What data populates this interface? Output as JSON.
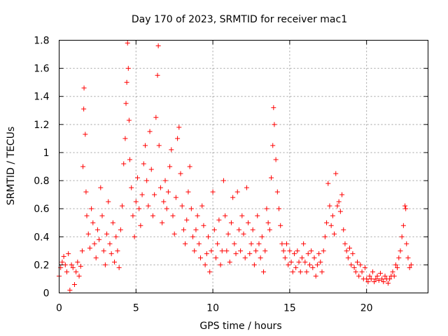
{
  "chart_data": {
    "type": "scatter",
    "title": "Day 170 of 2023, SRMTID for receiver mac1",
    "xlabel": "GPS time / hours",
    "ylabel": "SRMTID / TECUs",
    "xlim": [
      0,
      24
    ],
    "ylim": [
      0,
      1.8
    ],
    "xticks": [
      0,
      5,
      10,
      15,
      20
    ],
    "xtick_labels": [
      "0",
      "5",
      "10",
      "15",
      "20"
    ],
    "yticks": [
      0,
      0.2,
      0.4,
      0.6,
      0.8,
      1,
      1.2,
      1.4,
      1.6,
      1.8
    ],
    "ytick_labels": [
      "0",
      "0.2",
      "0.4",
      "0.6",
      "0.8",
      "1",
      "1.2",
      "1.4",
      "1.6",
      "1.8"
    ],
    "grid": true,
    "marker": "+",
    "color": "#ff0000",
    "series": [
      {
        "name": "SRMTID",
        "points": [
          [
            0.0,
            0.12
          ],
          [
            0.1,
            0.18
          ],
          [
            0.2,
            0.22
          ],
          [
            0.3,
            0.26
          ],
          [
            0.4,
            0.2
          ],
          [
            0.5,
            0.15
          ],
          [
            0.6,
            0.28
          ],
          [
            0.7,
            0.02
          ],
          [
            0.8,
            0.2
          ],
          [
            0.9,
            0.18
          ],
          [
            1.0,
            0.06
          ],
          [
            1.1,
            0.15
          ],
          [
            1.2,
            0.22
          ],
          [
            1.3,
            0.12
          ],
          [
            1.4,
            0.19
          ],
          [
            1.5,
            0.3
          ],
          [
            1.55,
            0.9
          ],
          [
            1.6,
            1.31
          ],
          [
            1.62,
            1.46
          ],
          [
            1.7,
            1.13
          ],
          [
            1.75,
            0.72
          ],
          [
            1.8,
            0.55
          ],
          [
            1.9,
            0.42
          ],
          [
            2.0,
            0.32
          ],
          [
            2.1,
            0.6
          ],
          [
            2.2,
            0.5
          ],
          [
            2.3,
            0.35
          ],
          [
            2.4,
            0.25
          ],
          [
            2.5,
            0.45
          ],
          [
            2.6,
            0.38
          ],
          [
            2.7,
            0.75
          ],
          [
            2.8,
            0.55
          ],
          [
            2.9,
            0.3
          ],
          [
            3.0,
            0.2
          ],
          [
            3.1,
            0.42
          ],
          [
            3.2,
            0.65
          ],
          [
            3.3,
            0.35
          ],
          [
            3.4,
            0.28
          ],
          [
            3.5,
            0.5
          ],
          [
            3.6,
            0.22
          ],
          [
            3.7,
            0.4
          ],
          [
            3.8,
            0.3
          ],
          [
            3.9,
            0.18
          ],
          [
            4.0,
            0.45
          ],
          [
            4.1,
            0.62
          ],
          [
            4.2,
            0.92
          ],
          [
            4.3,
            1.1
          ],
          [
            4.35,
            1.35
          ],
          [
            4.4,
            1.5
          ],
          [
            4.45,
            1.78
          ],
          [
            4.5,
            1.6
          ],
          [
            4.55,
            1.23
          ],
          [
            4.6,
            0.95
          ],
          [
            4.7,
            0.75
          ],
          [
            4.8,
            0.55
          ],
          [
            4.9,
            0.4
          ],
          [
            5.0,
            0.65
          ],
          [
            5.1,
            0.82
          ],
          [
            5.2,
            0.6
          ],
          [
            5.3,
            0.48
          ],
          [
            5.4,
            0.7
          ],
          [
            5.5,
            0.92
          ],
          [
            5.6,
            1.05
          ],
          [
            5.7,
            0.8
          ],
          [
            5.8,
            0.62
          ],
          [
            5.9,
            1.15
          ],
          [
            6.0,
            0.88
          ],
          [
            6.1,
            0.55
          ],
          [
            6.2,
            0.7
          ],
          [
            6.3,
            1.25
          ],
          [
            6.4,
            1.55
          ],
          [
            6.45,
            1.76
          ],
          [
            6.5,
            1.05
          ],
          [
            6.6,
            0.75
          ],
          [
            6.7,
            0.5
          ],
          [
            6.8,
            0.65
          ],
          [
            6.9,
            0.8
          ],
          [
            7.0,
            0.6
          ],
          [
            7.1,
            0.72
          ],
          [
            7.2,
            0.9
          ],
          [
            7.3,
            1.02
          ],
          [
            7.4,
            0.55
          ],
          [
            7.5,
            0.42
          ],
          [
            7.6,
            0.68
          ],
          [
            7.7,
            1.1
          ],
          [
            7.8,
            1.18
          ],
          [
            7.9,
            0.85
          ],
          [
            8.0,
            0.62
          ],
          [
            8.1,
            0.45
          ],
          [
            8.2,
            0.35
          ],
          [
            8.3,
            0.52
          ],
          [
            8.4,
            0.72
          ],
          [
            8.5,
            0.9
          ],
          [
            8.6,
            0.6
          ],
          [
            8.7,
            0.4
          ],
          [
            8.8,
            0.3
          ],
          [
            8.9,
            0.45
          ],
          [
            9.0,
            0.55
          ],
          [
            9.1,
            0.35
          ],
          [
            9.2,
            0.25
          ],
          [
            9.3,
            0.62
          ],
          [
            9.4,
            0.48
          ],
          [
            9.5,
            0.2
          ],
          [
            9.6,
            0.28
          ],
          [
            9.7,
            0.4
          ],
          [
            9.8,
            0.15
          ],
          [
            9.9,
            0.3
          ],
          [
            10.0,
            0.72
          ],
          [
            10.1,
            0.45
          ],
          [
            10.2,
            0.25
          ],
          [
            10.3,
            0.35
          ],
          [
            10.4,
            0.52
          ],
          [
            10.5,
            0.2
          ],
          [
            10.6,
            0.3
          ],
          [
            10.7,
            0.8
          ],
          [
            10.8,
            0.55
          ],
          [
            10.9,
            0.3
          ],
          [
            11.0,
            0.42
          ],
          [
            11.1,
            0.22
          ],
          [
            11.2,
            0.5
          ],
          [
            11.3,
            0.68
          ],
          [
            11.4,
            0.35
          ],
          [
            11.5,
            0.28
          ],
          [
            11.6,
            0.72
          ],
          [
            11.7,
            0.45
          ],
          [
            11.8,
            0.3
          ],
          [
            11.9,
            0.55
          ],
          [
            12.0,
            0.42
          ],
          [
            12.1,
            0.25
          ],
          [
            12.2,
            0.75
          ],
          [
            12.3,
            0.5
          ],
          [
            12.4,
            0.28
          ],
          [
            12.5,
            0.35
          ],
          [
            12.6,
            0.45
          ],
          [
            12.7,
            0.2
          ],
          [
            12.8,
            0.3
          ],
          [
            12.9,
            0.55
          ],
          [
            13.0,
            0.35
          ],
          [
            13.1,
            0.25
          ],
          [
            13.2,
            0.4
          ],
          [
            13.3,
            0.15
          ],
          [
            13.4,
            0.3
          ],
          [
            13.5,
            0.6
          ],
          [
            13.6,
            0.5
          ],
          [
            13.7,
            0.45
          ],
          [
            13.8,
            0.82
          ],
          [
            13.9,
            1.05
          ],
          [
            13.95,
            1.32
          ],
          [
            14.0,
            1.2
          ],
          [
            14.1,
            0.95
          ],
          [
            14.2,
            0.72
          ],
          [
            14.3,
            0.6
          ],
          [
            14.4,
            0.48
          ],
          [
            14.5,
            0.35
          ],
          [
            14.6,
            0.3
          ],
          [
            14.7,
            0.25
          ],
          [
            14.8,
            0.35
          ],
          [
            14.9,
            0.2
          ],
          [
            15.0,
            0.3
          ],
          [
            15.1,
            0.22
          ],
          [
            15.2,
            0.15
          ],
          [
            15.3,
            0.28
          ],
          [
            15.4,
            0.18
          ],
          [
            15.5,
            0.3
          ],
          [
            15.6,
            0.22
          ],
          [
            15.7,
            0.15
          ],
          [
            15.8,
            0.25
          ],
          [
            15.9,
            0.35
          ],
          [
            16.0,
            0.22
          ],
          [
            16.1,
            0.15
          ],
          [
            16.2,
            0.28
          ],
          [
            16.3,
            0.2
          ],
          [
            16.4,
            0.3
          ],
          [
            16.5,
            0.18
          ],
          [
            16.6,
            0.25
          ],
          [
            16.7,
            0.12
          ],
          [
            16.8,
            0.2
          ],
          [
            16.9,
            0.28
          ],
          [
            17.0,
            0.22
          ],
          [
            17.1,
            0.15
          ],
          [
            17.2,
            0.3
          ],
          [
            17.3,
            0.4
          ],
          [
            17.4,
            0.5
          ],
          [
            17.5,
            0.78
          ],
          [
            17.6,
            0.62
          ],
          [
            17.7,
            0.48
          ],
          [
            17.8,
            0.55
          ],
          [
            17.9,
            0.42
          ],
          [
            18.0,
            0.85
          ],
          [
            18.1,
            0.62
          ],
          [
            18.2,
            0.65
          ],
          [
            18.3,
            0.58
          ],
          [
            18.4,
            0.7
          ],
          [
            18.5,
            0.45
          ],
          [
            18.6,
            0.35
          ],
          [
            18.7,
            0.3
          ],
          [
            18.8,
            0.25
          ],
          [
            18.9,
            0.32
          ],
          [
            19.0,
            0.2
          ],
          [
            19.1,
            0.28
          ],
          [
            19.2,
            0.18
          ],
          [
            19.3,
            0.15
          ],
          [
            19.4,
            0.22
          ],
          [
            19.5,
            0.12
          ],
          [
            19.6,
            0.2
          ],
          [
            19.7,
            0.15
          ],
          [
            19.8,
            0.1
          ],
          [
            19.9,
            0.18
          ],
          [
            20.0,
            0.1
          ],
          [
            20.1,
            0.08
          ],
          [
            20.2,
            0.12
          ],
          [
            20.3,
            0.1
          ],
          [
            20.4,
            0.15
          ],
          [
            20.5,
            0.08
          ],
          [
            20.6,
            0.1
          ],
          [
            20.7,
            0.12
          ],
          [
            20.8,
            0.09
          ],
          [
            20.9,
            0.14
          ],
          [
            21.0,
            0.1
          ],
          [
            21.1,
            0.08
          ],
          [
            21.2,
            0.12
          ],
          [
            21.3,
            0.1
          ],
          [
            21.4,
            0.07
          ],
          [
            21.5,
            0.1
          ],
          [
            21.6,
            0.12
          ],
          [
            21.7,
            0.15
          ],
          [
            21.8,
            0.12
          ],
          [
            21.9,
            0.2
          ],
          [
            22.0,
            0.18
          ],
          [
            22.1,
            0.25
          ],
          [
            22.2,
            0.3
          ],
          [
            22.3,
            0.4
          ],
          [
            22.4,
            0.48
          ],
          [
            22.5,
            0.62
          ],
          [
            22.55,
            0.6
          ],
          [
            22.6,
            0.35
          ],
          [
            22.7,
            0.25
          ],
          [
            22.8,
            0.18
          ],
          [
            22.9,
            0.2
          ]
        ]
      }
    ]
  }
}
